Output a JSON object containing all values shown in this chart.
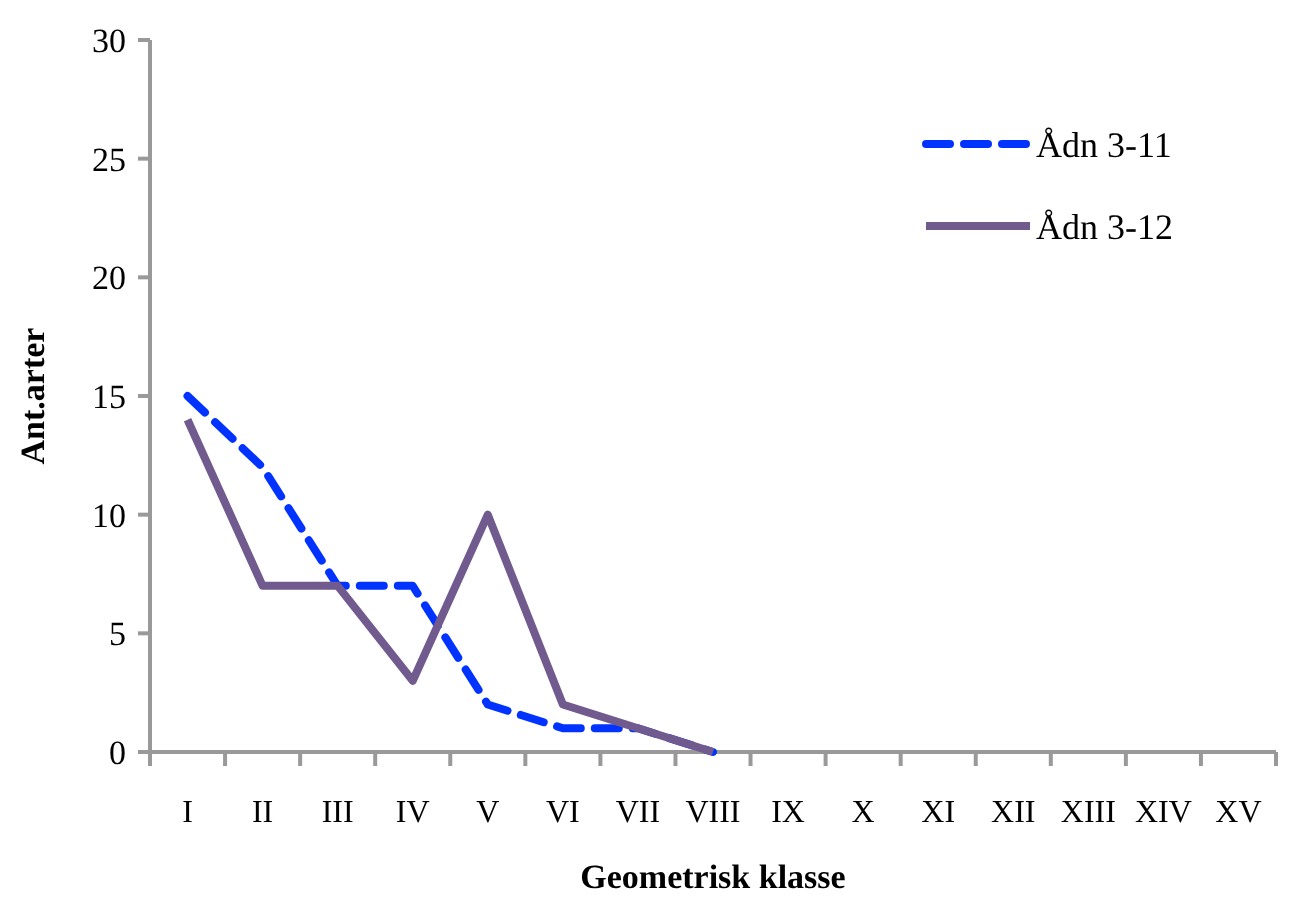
{
  "chart_data": {
    "type": "line",
    "xlabel": "Geometrisk klasse",
    "ylabel": "Ant.arter",
    "categories": [
      "I",
      "II",
      "III",
      "IV",
      "V",
      "VI",
      "VII",
      "VIII",
      "IX",
      "X",
      "XI",
      "XII",
      "XIII",
      "XIV",
      "XV"
    ],
    "series": [
      {
        "name": "Ådn 3-11",
        "color": "#0033ff",
        "line_style": "dashed",
        "values": [
          15,
          12,
          7,
          7,
          2,
          1,
          1,
          0,
          null,
          null,
          null,
          null,
          null,
          null,
          null
        ]
      },
      {
        "name": "Ådn 3-12",
        "color": "#715a8e",
        "line_style": "solid",
        "values": [
          14,
          7,
          7,
          3,
          10,
          2,
          1,
          0,
          null,
          null,
          null,
          null,
          null,
          null,
          null
        ]
      }
    ],
    "ylim": [
      0,
      30
    ],
    "yticks": [
      0,
      5,
      10,
      15,
      20,
      25,
      30
    ],
    "grid": false,
    "legend": "top right",
    "marker": "none"
  }
}
